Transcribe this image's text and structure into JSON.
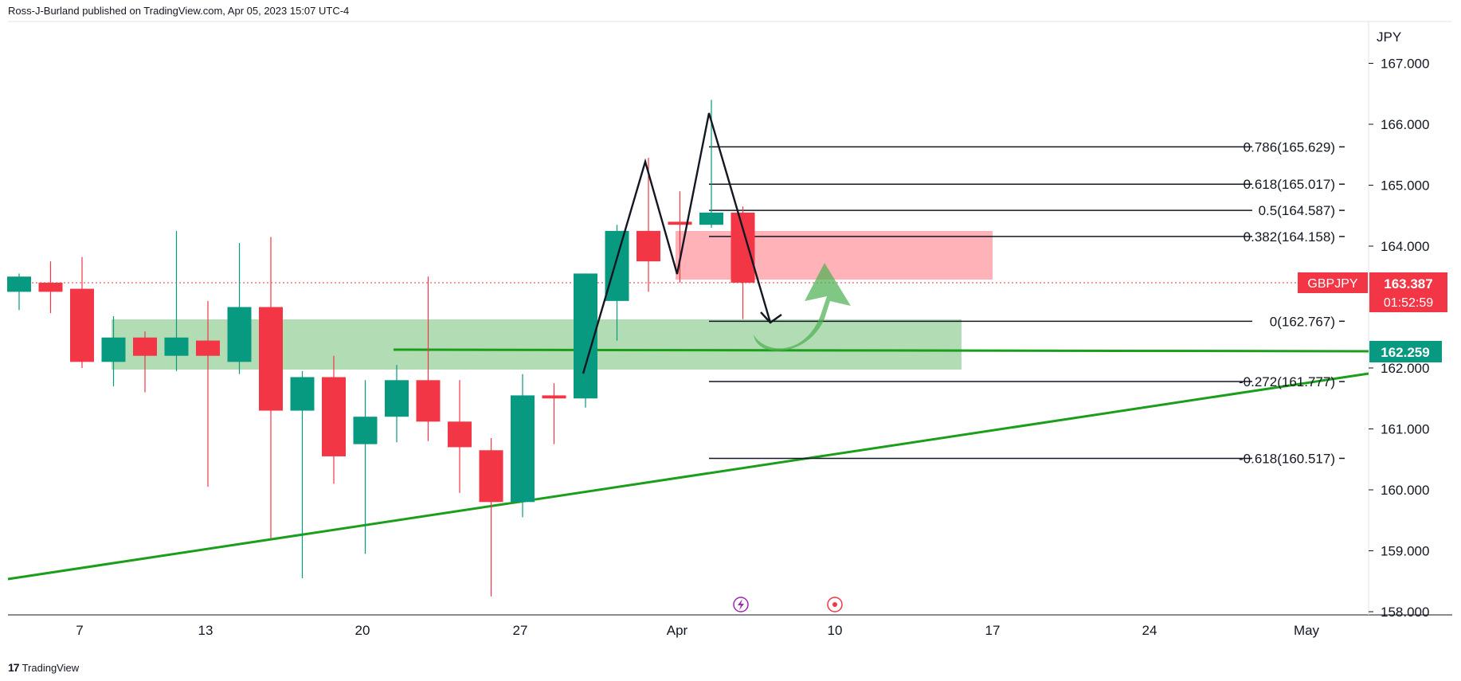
{
  "header": {
    "publisher_text": "Ross-J-Burland published on TradingView.com, Apr 05, 2023 15:07 UTC-4"
  },
  "footer": {
    "logo_mark": "17",
    "logo_text": "TradingView"
  },
  "price_axis": {
    "currency": "JPY",
    "ticks": [
      "167.000",
      "166.000",
      "165.000",
      "164.000",
      "162.000",
      "161.000",
      "160.000",
      "159.000",
      "158.000"
    ]
  },
  "time_axis": {
    "labels": [
      "7",
      "13",
      "20",
      "27",
      "Apr",
      "10",
      "17",
      "24",
      "May"
    ]
  },
  "symbol_tag": {
    "symbol": "GBPJPY",
    "price": "163.387",
    "countdown": "01:52:59",
    "color": "#f23645"
  },
  "support_tag": {
    "price": "162.259",
    "color": "#089981"
  },
  "fib_levels": [
    {
      "label": "0.786(165.629)",
      "price": 165.629
    },
    {
      "label": "0.618(165.017)",
      "price": 165.017
    },
    {
      "label": "0.5(164.587)",
      "price": 164.587
    },
    {
      "label": "0.382(164.158)",
      "price": 164.158
    },
    {
      "label": "0(162.767)",
      "price": 162.767
    },
    {
      "label": "-0.272(161.777)",
      "price": 161.777
    },
    {
      "label": "-0.618(160.517)",
      "price": 160.517
    }
  ],
  "colors": {
    "up": "#089981",
    "down": "#f23645",
    "support_zone": "#a5d6a7",
    "resistance_zone": "#ffa4ac",
    "trendline": "#1b9e1b",
    "pattern_line": "#131722"
  },
  "icons": [
    "lightning-event-icon",
    "target-event-icon"
  ],
  "chart_data": {
    "type": "candlestick",
    "symbol": "GBPJPY",
    "ylim": [
      158.0,
      167.5
    ],
    "candles": [
      {
        "open": 163.25,
        "high": 163.55,
        "low": 162.95,
        "close": 163.5
      },
      {
        "open": 163.4,
        "high": 163.75,
        "low": 162.9,
        "close": 163.25
      },
      {
        "open": 163.3,
        "high": 163.82,
        "low": 162.0,
        "close": 162.1
      },
      {
        "open": 162.1,
        "high": 162.85,
        "low": 161.7,
        "close": 162.5
      },
      {
        "open": 162.5,
        "high": 162.6,
        "low": 161.6,
        "close": 162.2
      },
      {
        "open": 162.2,
        "high": 164.25,
        "low": 161.95,
        "close": 162.5
      },
      {
        "open": 162.45,
        "high": 163.1,
        "low": 160.05,
        "close": 162.2
      },
      {
        "open": 162.1,
        "high": 164.05,
        "low": 161.9,
        "close": 163.0
      },
      {
        "open": 163.0,
        "high": 164.15,
        "low": 159.2,
        "close": 161.3
      },
      {
        "open": 161.3,
        "high": 161.95,
        "low": 158.55,
        "close": 161.85
      },
      {
        "open": 161.85,
        "high": 162.2,
        "low": 160.1,
        "close": 160.55
      },
      {
        "open": 160.75,
        "high": 161.8,
        "low": 158.95,
        "close": 161.2
      },
      {
        "open": 161.2,
        "high": 162.05,
        "low": 160.78,
        "close": 161.8
      },
      {
        "open": 161.8,
        "high": 163.5,
        "low": 160.8,
        "close": 161.12
      },
      {
        "open": 161.12,
        "high": 161.8,
        "low": 159.95,
        "close": 160.7
      },
      {
        "open": 160.65,
        "high": 160.85,
        "low": 158.25,
        "close": 159.8
      },
      {
        "open": 159.8,
        "high": 161.9,
        "low": 159.55,
        "close": 161.55
      },
      {
        "open": 161.55,
        "high": 161.75,
        "low": 160.75,
        "close": 161.5
      },
      {
        "open": 161.5,
        "high": 163.55,
        "low": 161.35,
        "close": 163.55
      },
      {
        "open": 163.1,
        "high": 164.35,
        "low": 162.45,
        "close": 164.25
      },
      {
        "open": 164.25,
        "high": 165.45,
        "low": 163.25,
        "close": 163.75
      },
      {
        "open": 164.4,
        "high": 164.9,
        "low": 163.4,
        "close": 164.35
      },
      {
        "open": 164.35,
        "high": 166.4,
        "low": 164.3,
        "close": 164.55
      },
      {
        "open": 164.55,
        "high": 164.65,
        "low": 162.8,
        "close": 163.4
      }
    ],
    "current_price": 163.387,
    "support_line": 162.259,
    "fib_levels": [
      165.629,
      165.017,
      164.587,
      164.158,
      162.767,
      161.777,
      160.517
    ]
  }
}
